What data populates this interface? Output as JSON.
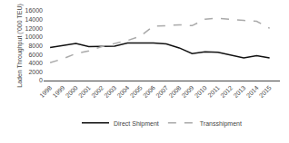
{
  "chart_data": {
    "type": "line",
    "x": [
      1998,
      1999,
      2000,
      2001,
      2002,
      2003,
      2004,
      2005,
      2006,
      2007,
      2008,
      2009,
      2010,
      2011,
      2012,
      2013,
      2014,
      2015
    ],
    "series": [
      {
        "name": "Direct Shipment",
        "color": "#111111",
        "line_style": "solid",
        "values": [
          7600,
          8000,
          8500,
          7800,
          7800,
          7900,
          8600,
          8600,
          8600,
          8400,
          7500,
          6200,
          6600,
          6500,
          5900,
          5200,
          5700,
          5200
        ]
      },
      {
        "name": "Transshipment",
        "color": "#aaaaaa",
        "line_style": "dashed",
        "values": [
          4100,
          5000,
          6200,
          6800,
          7800,
          8500,
          9200,
          10200,
          12500,
          12600,
          12800,
          12600,
          14100,
          14300,
          14000,
          13800,
          13600,
          12000
        ]
      }
    ],
    "ylabel": "Laden Throughput ('000 TEU)",
    "xlim": [
      1997.5,
      2015.8
    ],
    "xticks": [
      1998,
      1999,
      2000,
      2001,
      2002,
      2003,
      2004,
      2005,
      2006,
      2007,
      2008,
      2009,
      2010,
      2011,
      2012,
      2013,
      2014,
      2015
    ],
    "ylim": [
      0,
      16000
    ],
    "yticks": [
      0,
      2000,
      4000,
      6000,
      8000,
      10000,
      12000,
      14000,
      16000
    ],
    "grid": false,
    "legend": "bottom"
  }
}
